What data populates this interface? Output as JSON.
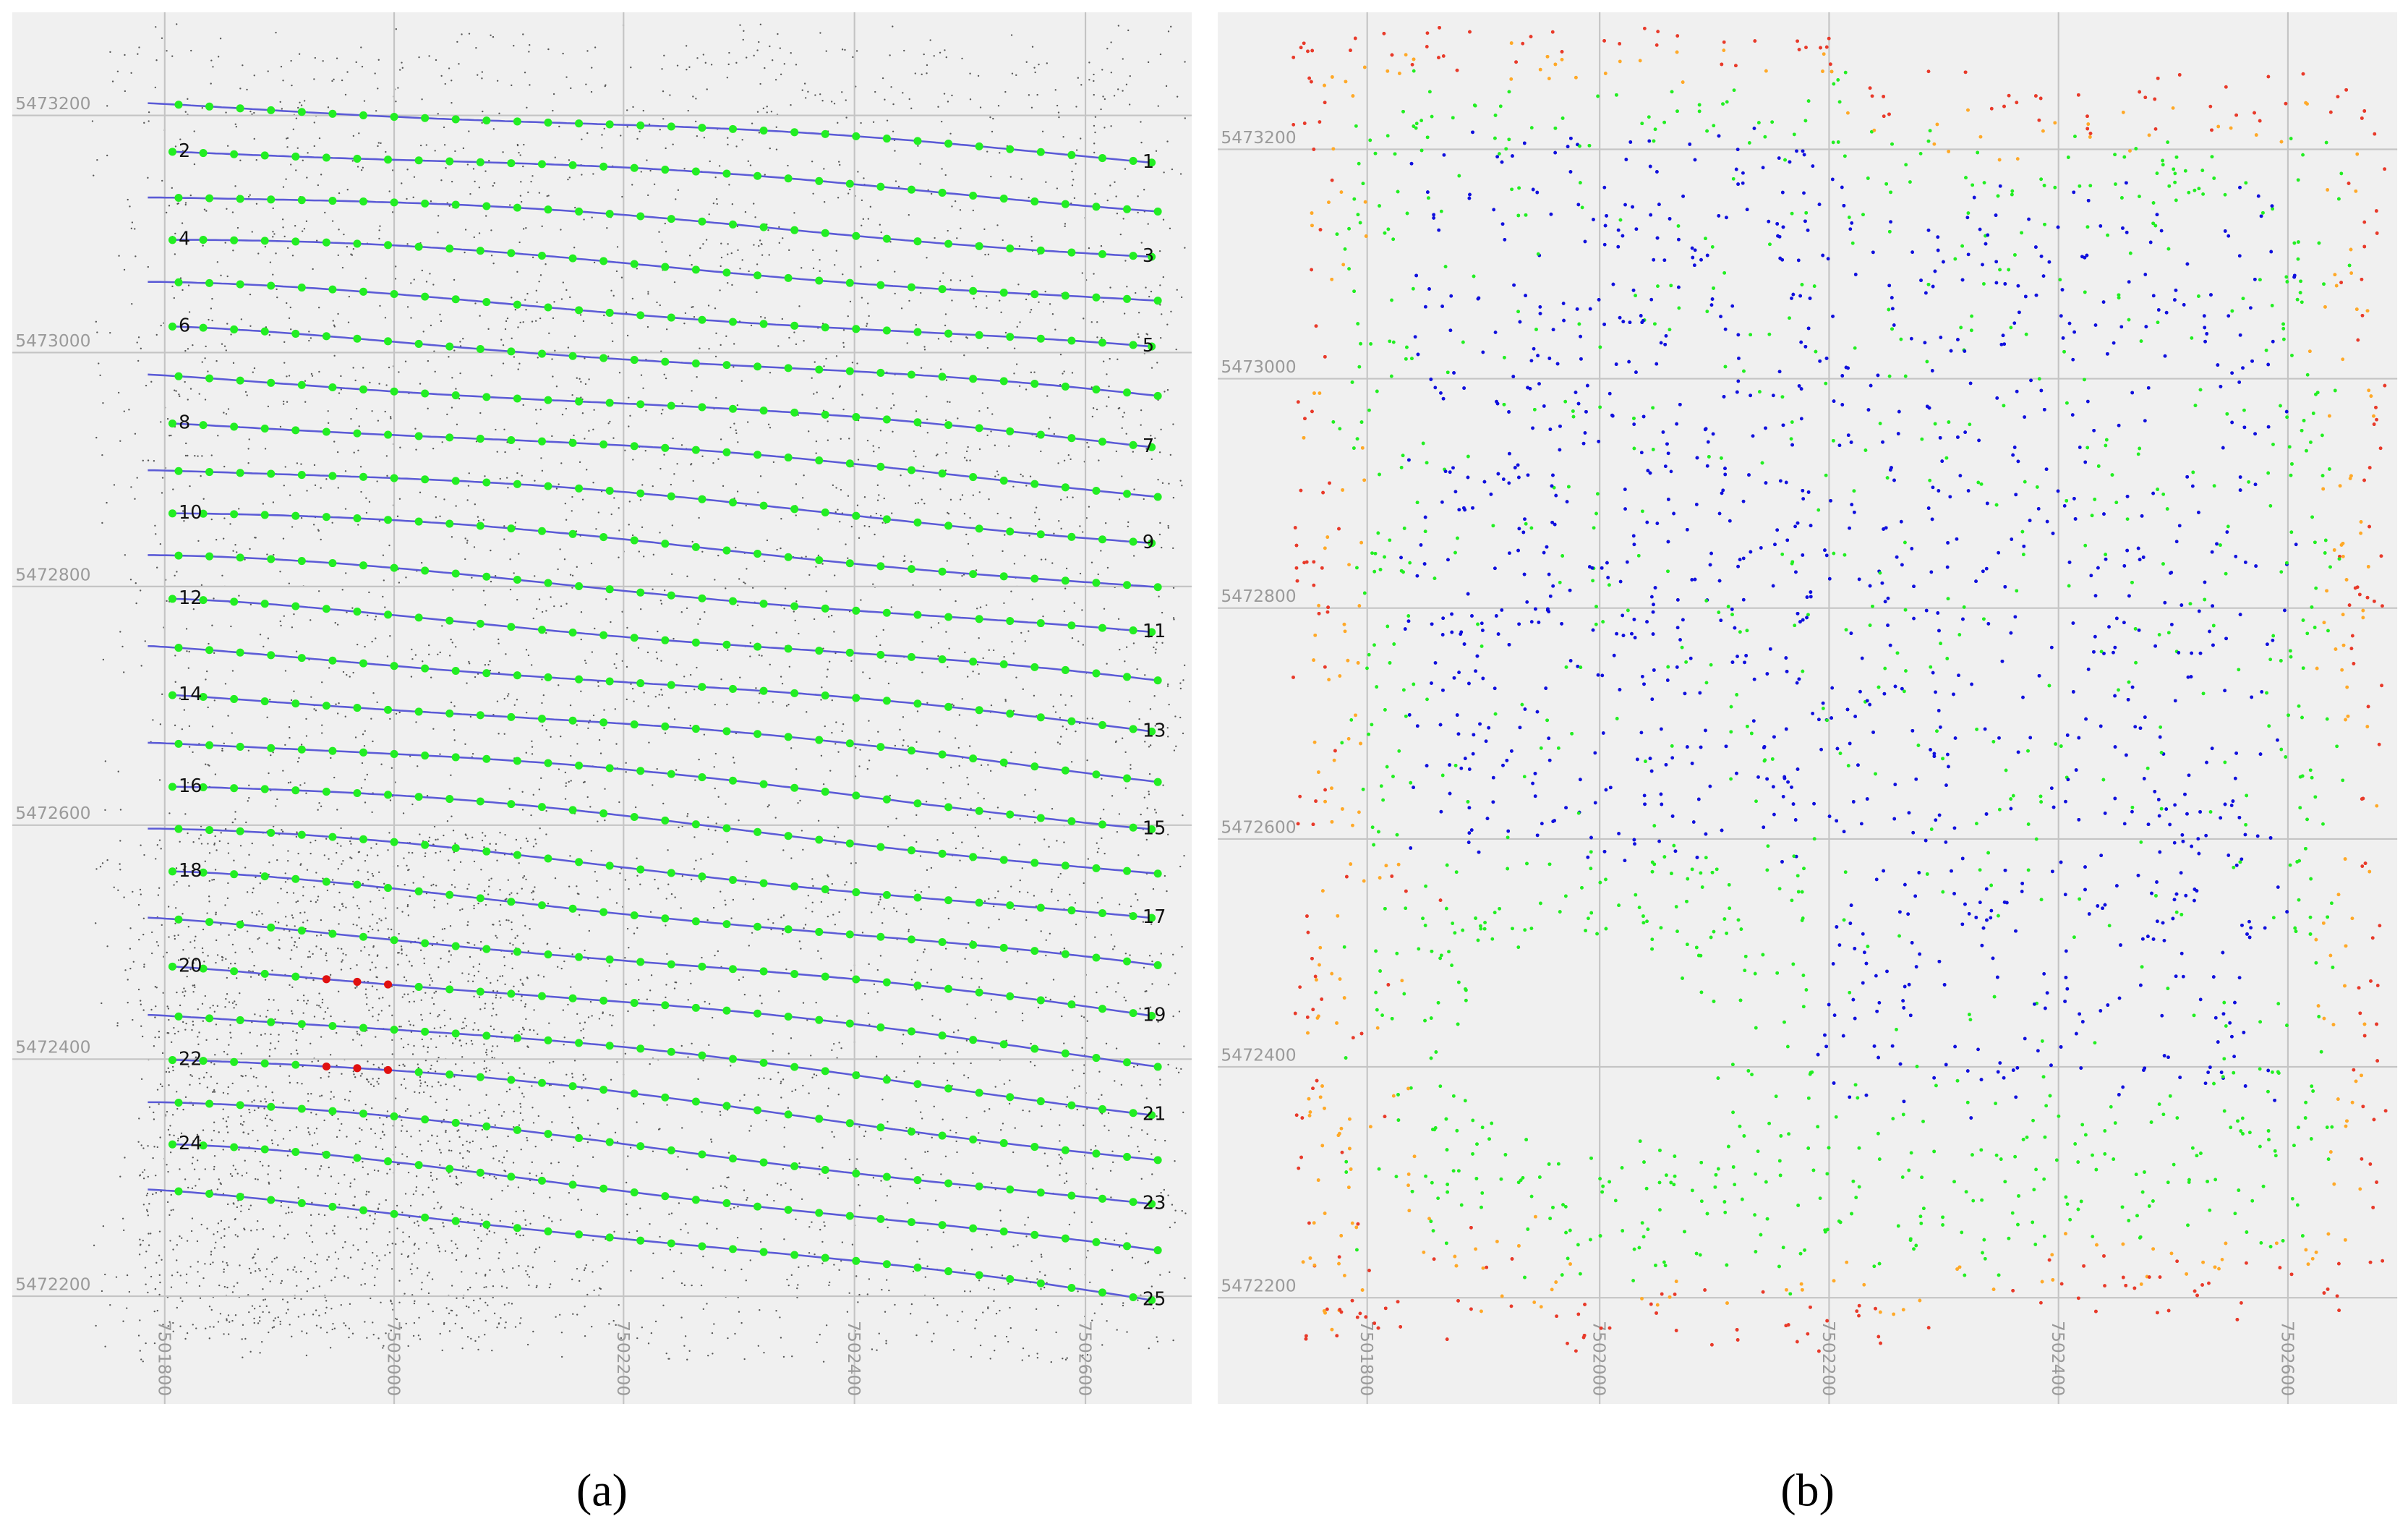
{
  "panels": [
    {
      "caption": "(a)",
      "y_labels": [
        "5473200",
        "5473000",
        "5472800",
        "5472600",
        "5472400",
        "5472200"
      ],
      "x_labels": [
        "7501800",
        "7502000",
        "7502200",
        "7502400",
        "7502600"
      ],
      "line_labels": [
        "1",
        "2",
        "3",
        "4",
        "5",
        "6",
        "7",
        "8",
        "9",
        "10",
        "11",
        "12",
        "13",
        "14",
        "15",
        "16",
        "17",
        "18",
        "19",
        "20",
        "21",
        "22",
        "23",
        "24",
        "25"
      ]
    },
    {
      "caption": "(b)",
      "y_labels": [
        "5473200",
        "5473000",
        "5472800",
        "5472600",
        "5472400",
        "5472200"
      ],
      "x_labels": [
        "7501800",
        "7502000",
        "7502200",
        "7502400",
        "7502600"
      ]
    }
  ]
}
